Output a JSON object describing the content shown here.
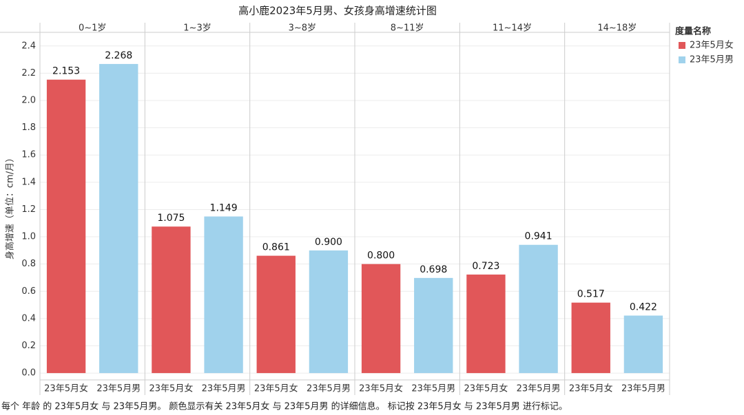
{
  "chart_data": {
    "type": "bar",
    "title": "高小鹿2023年5月男、女孩身高增速统计图",
    "y_label": "身高增速（单位：cm/月）",
    "legend_title": "度量名称",
    "groups": [
      "0~1岁",
      "1~3岁",
      "3~8岁",
      "8~11岁",
      "11~14岁",
      "14~18岁"
    ],
    "series": [
      {
        "name": "23年5月女",
        "color": "#e15759",
        "values": [
          2.153,
          1.075,
          0.861,
          0.8,
          0.723,
          0.517
        ],
        "value_labels": [
          "2.153",
          "1.075",
          "0.861",
          "0.800",
          "0.723",
          "0.517"
        ]
      },
      {
        "name": "23年5月男",
        "color": "#a0d2ec",
        "values": [
          2.268,
          1.149,
          0.9,
          0.698,
          0.941,
          0.422
        ],
        "value_labels": [
          "2.268",
          "1.149",
          "0.900",
          "0.698",
          "0.941",
          "0.422"
        ]
      }
    ],
    "ylim": [
      -0.05,
      2.5
    ],
    "yticks": [
      {
        "value": 0,
        "label": "0.0"
      },
      0.2,
      0.4,
      0.6,
      0.8,
      {
        "value": 1,
        "label": "1.0"
      },
      1.2,
      1.4,
      1.6,
      1.8,
      {
        "value": 2,
        "label": "2.0"
      },
      2.2,
      2.4
    ],
    "grid": true,
    "caption": "每个 年龄 的 23年5月女 与 23年5月男。 颜色显示有关 23年5月女 与 23年5月男 的详细信息。 标记按 23年5月女 与 23年5月男 进行标记。"
  }
}
